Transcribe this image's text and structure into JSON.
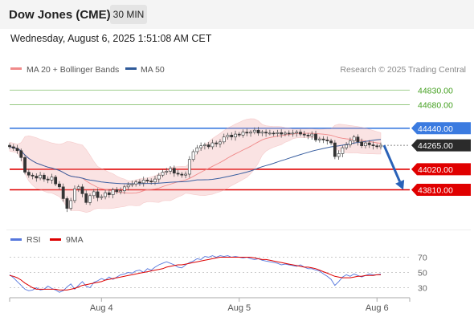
{
  "header": {
    "title": "Dow Jones (CME)",
    "timeframe": "30 MIN",
    "timestamp": "Wednesday, August 6, 2025 1:51:08 AM CET"
  },
  "colors": {
    "candle": "#555555",
    "bollinger": "#f0a8a8",
    "ma50": "#3a5fa0",
    "resistance": "#88c070",
    "pivot": "#3b7be0",
    "support": "#e00000",
    "rsi": "#5577dd",
    "rsi_ma": "#dd0000",
    "arrow": "#2a62b8"
  },
  "chart_data": [
    {
      "type": "candlestick",
      "legend": [
        {
          "label": "MA 20 + Bollinger Bands",
          "color": "#f08a8a"
        },
        {
          "label": "MA 50",
          "color": "#2f5a99"
        }
      ],
      "credit": "Research © 2025 Trading Central",
      "ylim": [
        43420,
        44980
      ],
      "x_labels": [
        {
          "label": "Aug 4",
          "index": 24
        },
        {
          "label": "Aug 5",
          "index": 60
        },
        {
          "label": "Aug 6",
          "index": 96
        }
      ],
      "levels": [
        {
          "value": 44830,
          "label": "44830.00",
          "kind": "resistance"
        },
        {
          "value": 44680,
          "label": "44680.00",
          "kind": "resistance"
        },
        {
          "value": 44440,
          "label": "44440.00",
          "kind": "pivot"
        },
        {
          "value": 44265,
          "label": "44265.00",
          "kind": "last"
        },
        {
          "value": 44020,
          "label": "44020.00",
          "kind": "support"
        },
        {
          "value": 43810,
          "label": "43810.00",
          "kind": "support"
        }
      ],
      "last_price": 44265,
      "projection": {
        "from": 44265,
        "to": 43810
      },
      "close": [
        44250,
        44235,
        44210,
        44140,
        43990,
        43960,
        43950,
        43930,
        43960,
        43920,
        43910,
        43940,
        43870,
        43840,
        43720,
        43620,
        43700,
        43820,
        43840,
        43770,
        43680,
        43750,
        43790,
        43730,
        43740,
        43780,
        43760,
        43810,
        43790,
        43800,
        43840,
        43860,
        43870,
        43890,
        43880,
        43910,
        43900,
        43890,
        43920,
        43960,
        43990,
        44000,
        44030,
        43980,
        43970,
        43960,
        43970,
        44120,
        44200,
        44240,
        44260,
        44270,
        44250,
        44290,
        44280,
        44300,
        44350,
        44370,
        44350,
        44380,
        44370,
        44400,
        44390,
        44400,
        44420,
        44390,
        44400,
        44390,
        44390,
        44385,
        44395,
        44380,
        44390,
        44385,
        44390,
        44400,
        44380,
        44370,
        44360,
        44380,
        44320,
        44330,
        44320,
        44310,
        44290,
        44150,
        44180,
        44240,
        44270,
        44310,
        44350,
        44300,
        44260,
        44290,
        44270,
        44260,
        44250,
        44265
      ]
    },
    {
      "type": "line",
      "legend": [
        {
          "label": "RSI",
          "color": "#5577dd"
        },
        {
          "label": "9MA",
          "color": "#dd0000"
        }
      ],
      "ylim": [
        20,
        80
      ],
      "y_ticks": [
        70,
        50,
        30
      ],
      "levels": [
        70,
        50,
        30
      ],
      "rsi": [
        47,
        43,
        38,
        33,
        28,
        26,
        27,
        30,
        27,
        28,
        32,
        29,
        27,
        24,
        26,
        31,
        35,
        28,
        33,
        38,
        32,
        30,
        37,
        39,
        42,
        40,
        44,
        41,
        44,
        47,
        48,
        50,
        49,
        52,
        53,
        50,
        55,
        53,
        57,
        60,
        62,
        64,
        62,
        60,
        57,
        56,
        60,
        63,
        65,
        68,
        67,
        71,
        70,
        72,
        70,
        72,
        71,
        72,
        70,
        71,
        70,
        69,
        70,
        68,
        67,
        68,
        66,
        65,
        64,
        63,
        62,
        60,
        61,
        60,
        59,
        58,
        60,
        57,
        55,
        55,
        53,
        52,
        48,
        45,
        41,
        33,
        38,
        44,
        47,
        45,
        48,
        46,
        44,
        46,
        48,
        47,
        47,
        48
      ],
      "ma": [
        46,
        45,
        43,
        40,
        36,
        33,
        30,
        28,
        28,
        28,
        28,
        28,
        28,
        27,
        27,
        27,
        28,
        29,
        31,
        33,
        34,
        35,
        36,
        37,
        38,
        40,
        41,
        42,
        43,
        44,
        45,
        46,
        47,
        48,
        49,
        50,
        51,
        52,
        53,
        54,
        55,
        57,
        58,
        59,
        60,
        60,
        61,
        62,
        63,
        64,
        65,
        66,
        67,
        68,
        69,
        70,
        70,
        70,
        70,
        70,
        70,
        70,
        70,
        70,
        69,
        68,
        67,
        67,
        66,
        65,
        64,
        63,
        62,
        61,
        60,
        59,
        58,
        57,
        57,
        56,
        55,
        53,
        51,
        49,
        47,
        45,
        44,
        43,
        43,
        43,
        44,
        45,
        45,
        46,
        46,
        46,
        47,
        47
      ]
    }
  ]
}
